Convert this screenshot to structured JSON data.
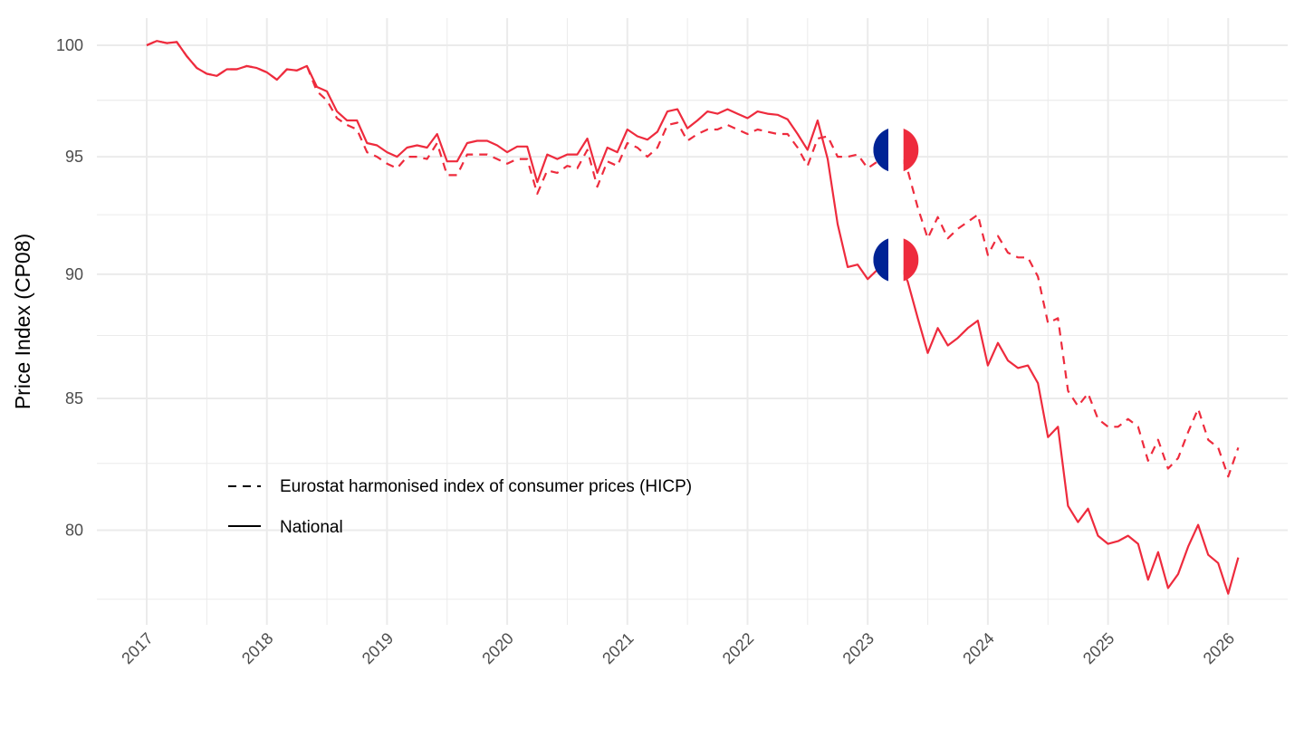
{
  "chart_data": {
    "type": "line",
    "title": "",
    "xlabel": "",
    "ylabel": "Price Index (CP08)",
    "y_scale": "log",
    "ylim": [
      77,
      101
    ],
    "xlim": [
      "2016-08",
      "2026-06"
    ],
    "x_start": "2017-01",
    "frequency": "monthly",
    "grid": true,
    "legend_placement": "bottom-left inside",
    "x_ticks": [
      "2017",
      "2018",
      "2019",
      "2020",
      "2021",
      "2022",
      "2023",
      "2024",
      "2025",
      "2026"
    ],
    "y_ticks": [
      80,
      85,
      90,
      95,
      100
    ],
    "colors": {
      "line": "#EE2B3D",
      "flag_blue": "#002395",
      "flag_white": "#FFFFFF",
      "flag_red": "#EE2B3D",
      "grid": "#EBEBEB",
      "text": "#4D4D4D"
    },
    "series": [
      {
        "name": "Eurostat harmonised index of consumer prices (HICP)",
        "dash": "dashed",
        "values": [
          100.0,
          100.2,
          100.1,
          100.15,
          99.5,
          98.96,
          98.7,
          98.6,
          98.9,
          98.9,
          99.05,
          98.96,
          98.76,
          98.43,
          98.9,
          98.85,
          99.05,
          97.9,
          97.5,
          96.7,
          96.4,
          96.2,
          95.2,
          95.0,
          94.7,
          94.5,
          95.0,
          95.0,
          94.9,
          95.6,
          94.2,
          94.2,
          95.1,
          95.1,
          95.1,
          94.9,
          94.7,
          94.9,
          94.9,
          93.4,
          94.4,
          94.3,
          94.6,
          94.5,
          95.3,
          93.7,
          94.8,
          94.6,
          95.6,
          95.4,
          95.0,
          95.4,
          96.4,
          96.5,
          95.7,
          96.0,
          96.2,
          96.2,
          96.4,
          96.2,
          96.0,
          96.2,
          96.1,
          96.0,
          96.0,
          95.4,
          94.6,
          95.8,
          95.9,
          95.0,
          95.0,
          95.1,
          94.5,
          94.8,
          95.2,
          95.3,
          94.4,
          92.8,
          91.5,
          92.4,
          91.5,
          91.9,
          92.2,
          92.5,
          90.8,
          91.6,
          90.9,
          90.7,
          90.7,
          89.9,
          88.0,
          88.2,
          85.3,
          84.7,
          85.2,
          84.2,
          83.9,
          83.9,
          84.2,
          83.9,
          82.6,
          83.4,
          82.3,
          82.7,
          83.7,
          84.6,
          83.4,
          83.1,
          82.0,
          83.1
        ]
      },
      {
        "name": "National",
        "dash": "solid",
        "values": [
          100.0,
          100.2,
          100.1,
          100.15,
          99.5,
          98.96,
          98.7,
          98.6,
          98.9,
          98.9,
          99.05,
          98.96,
          98.76,
          98.43,
          98.9,
          98.85,
          99.05,
          98.1,
          97.9,
          97.0,
          96.6,
          96.6,
          95.6,
          95.5,
          95.2,
          95.0,
          95.4,
          95.5,
          95.4,
          96.0,
          94.8,
          94.8,
          95.6,
          95.7,
          95.7,
          95.5,
          95.2,
          95.45,
          95.45,
          93.9,
          95.1,
          94.9,
          95.1,
          95.1,
          95.8,
          94.3,
          95.4,
          95.2,
          96.2,
          95.9,
          95.75,
          96.1,
          97.0,
          97.1,
          96.25,
          96.6,
          97.0,
          96.9,
          97.1,
          96.9,
          96.7,
          97.0,
          96.9,
          96.85,
          96.65,
          96.0,
          95.3,
          96.6,
          94.9,
          92.1,
          90.3,
          90.4,
          89.8,
          90.2,
          90.5,
          90.6,
          89.7,
          88.2,
          86.8,
          87.8,
          87.1,
          87.4,
          87.8,
          88.1,
          86.3,
          87.2,
          86.5,
          86.2,
          86.3,
          85.6,
          83.5,
          83.9,
          80.9,
          80.3,
          80.8,
          79.8,
          79.5,
          79.6,
          79.8,
          79.5,
          78.2,
          79.2,
          77.9,
          78.4,
          79.4,
          80.2,
          79.1,
          78.8,
          77.7,
          79.0
        ]
      }
    ],
    "flag_annotation": {
      "country": "France",
      "at_month_index": 75
    }
  }
}
